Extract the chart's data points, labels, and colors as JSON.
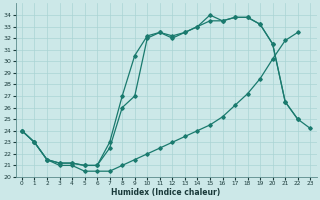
{
  "xlabel": "Humidex (Indice chaleur)",
  "bg_color": "#cce8e8",
  "grid_color": "#aad4d4",
  "line_color": "#1a7a6e",
  "xlim": [
    -0.5,
    23.5
  ],
  "ylim": [
    20,
    35
  ],
  "xticks": [
    0,
    1,
    2,
    3,
    4,
    5,
    6,
    7,
    8,
    9,
    10,
    11,
    12,
    13,
    14,
    15,
    16,
    17,
    18,
    19,
    20,
    21,
    22,
    23
  ],
  "yticks": [
    20,
    21,
    22,
    23,
    24,
    25,
    26,
    27,
    28,
    29,
    30,
    31,
    32,
    33,
    34
  ],
  "line_upper_x": [
    0,
    1,
    2,
    3,
    4,
    5,
    6,
    7,
    8,
    9,
    10,
    11,
    12,
    13,
    14,
    15,
    16,
    17,
    18,
    19,
    20,
    21,
    22,
    23
  ],
  "line_upper_y": [
    24.0,
    23.0,
    21.5,
    21.2,
    21.2,
    21.0,
    21.0,
    23.0,
    27.0,
    30.5,
    32.2,
    32.5,
    32.2,
    32.5,
    33.0,
    34.0,
    33.5,
    33.8,
    33.8,
    33.2,
    31.5,
    26.5,
    25.0,
    24.2
  ],
  "line_mid_x": [
    0,
    1,
    2,
    3,
    4,
    5,
    6,
    7,
    8,
    9,
    10,
    11,
    12,
    13,
    14,
    15,
    16,
    17,
    18,
    19,
    20,
    21,
    22,
    23
  ],
  "line_mid_y": [
    24.0,
    23.0,
    21.5,
    21.2,
    21.2,
    21.0,
    21.0,
    22.5,
    26.0,
    27.0,
    32.0,
    32.5,
    32.0,
    32.5,
    33.0,
    33.5,
    33.5,
    33.8,
    33.8,
    33.2,
    31.5,
    26.5,
    25.0,
    null
  ],
  "line_low_x": [
    0,
    1,
    2,
    3,
    4,
    5,
    6,
    7,
    8,
    9,
    10,
    11,
    12,
    13,
    14,
    15,
    16,
    17,
    18,
    19,
    20,
    21,
    22,
    23
  ],
  "line_low_y": [
    24.0,
    23.0,
    21.5,
    21.0,
    21.0,
    20.5,
    20.5,
    20.5,
    21.0,
    21.5,
    22.0,
    22.5,
    23.0,
    23.5,
    24.0,
    24.5,
    25.2,
    26.2,
    27.2,
    28.5,
    30.2,
    31.8,
    32.5,
    null
  ]
}
